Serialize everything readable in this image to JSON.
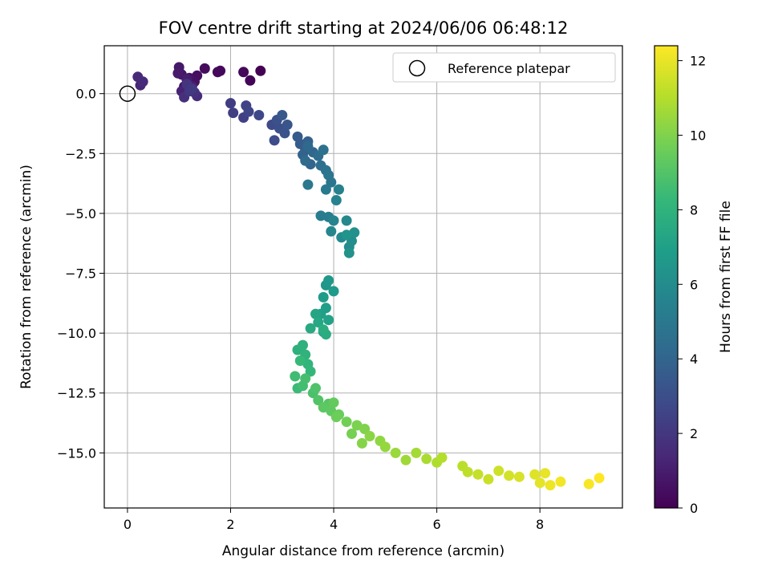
{
  "chart_data": {
    "type": "scatter",
    "title": "FOV centre drift starting at 2024/06/06 06:48:12",
    "xlabel": "Angular distance from reference (arcmin)",
    "ylabel": "Rotation from reference (arcmin)",
    "xlim": [
      -0.45,
      9.6
    ],
    "ylim": [
      -17.3,
      2.0
    ],
    "xticks": [
      "0",
      "2",
      "4",
      "6",
      "8"
    ],
    "xtick_values": [
      0,
      2,
      4,
      6,
      8
    ],
    "yticks": [
      "0.0",
      "−2.5",
      "−5.0",
      "−7.5",
      "−10.0",
      "−12.5",
      "−15.0"
    ],
    "ytick_values": [
      0,
      -2.5,
      -5,
      -7.5,
      -10,
      -12.5,
      -15
    ],
    "grid": true,
    "legend": {
      "placement": "top-right",
      "label": "Reference platepar"
    },
    "colorbar": {
      "label": "Hours from first FF file",
      "range": [
        0,
        12.4
      ],
      "ticks": [
        "0",
        "2",
        "4",
        "6",
        "8",
        "10",
        "12"
      ],
      "tick_values": [
        0,
        2,
        4,
        6,
        8,
        10,
        12
      ],
      "colormap": "viridis",
      "stops": [
        "#440154",
        "#482878",
        "#3e4989",
        "#31688e",
        "#26828e",
        "#1f9e89",
        "#35b779",
        "#6ece58",
        "#b5de2b",
        "#fde725"
      ]
    },
    "reference_point": {
      "x": 0,
      "y": 0
    },
    "series": [
      {
        "hours": [
          0.0,
          0.1,
          0.2,
          0.25,
          0.3,
          0.4,
          0.45,
          0.55,
          0.6,
          0.7,
          0.75,
          0.8,
          0.9,
          1.0,
          1.1,
          1.2,
          1.3,
          1.4,
          1.5,
          1.6,
          1.7,
          1.8,
          1.9,
          2.0,
          2.1,
          2.2,
          2.3,
          2.4,
          2.5,
          2.6,
          2.7,
          2.8,
          2.9,
          3.0,
          3.1,
          3.2,
          3.3,
          3.4,
          3.5,
          3.6,
          3.7,
          3.8,
          3.9,
          4.0,
          4.1,
          4.2,
          4.3,
          4.4,
          4.5,
          4.6,
          4.7,
          4.8,
          4.9,
          5.0,
          5.1,
          5.2,
          5.3,
          5.4,
          5.5,
          5.6,
          5.7,
          5.8,
          5.9,
          6.0,
          6.1,
          6.2,
          6.3,
          6.4,
          6.5,
          6.6,
          6.7,
          6.8,
          6.9,
          7.0,
          7.1,
          7.2,
          7.3,
          7.4,
          7.5,
          7.6,
          7.7,
          7.8,
          7.9,
          8.0,
          8.1,
          8.2,
          8.3,
          8.4,
          8.5,
          8.6,
          8.7,
          8.8,
          8.9,
          9.0,
          9.1,
          9.2,
          9.3,
          9.4,
          9.5,
          9.6,
          9.7,
          9.8,
          9.9,
          10.0,
          10.1,
          10.2,
          10.3,
          10.4,
          10.5,
          10.6,
          10.7,
          10.8,
          10.9,
          11.0,
          11.1,
          11.2,
          11.3,
          11.4,
          11.5,
          11.6,
          11.7,
          11.8,
          11.9,
          12.0,
          12.1,
          12.2,
          12.3,
          12.4
        ],
        "x": [
          2.58,
          2.38,
          2.25,
          1.8,
          1.75,
          1.5,
          1.35,
          1.3,
          1.2,
          1.1,
          1.05,
          1.0,
          0.98,
          1.15,
          1.25,
          1.05,
          0.25,
          0.2,
          0.3,
          1.35,
          1.1,
          1.3,
          1.15,
          1.2,
          1.25,
          2.0,
          2.05,
          2.25,
          2.3,
          2.35,
          2.55,
          2.8,
          2.85,
          2.95,
          2.9,
          3.05,
          3.1,
          3.0,
          3.3,
          3.35,
          3.45,
          3.5,
          3.4,
          3.55,
          3.6,
          3.5,
          3.45,
          3.7,
          3.75,
          3.8,
          3.85,
          3.9,
          3.95,
          3.5,
          3.85,
          3.75,
          3.9,
          4.1,
          4.05,
          4.0,
          3.95,
          4.25,
          4.15,
          4.3,
          4.35,
          4.4,
          4.3,
          4.25,
          3.85,
          3.9,
          4.0,
          3.8,
          3.85,
          3.75,
          3.9,
          3.8,
          3.65,
          3.7,
          3.55,
          3.85,
          3.8,
          3.3,
          3.4,
          3.45,
          3.5,
          3.55,
          3.35,
          3.3,
          3.25,
          3.4,
          3.45,
          3.6,
          3.65,
          3.7,
          3.9,
          3.8,
          3.95,
          4.0,
          4.1,
          4.05,
          4.25,
          4.35,
          4.45,
          4.6,
          4.55,
          4.7,
          4.9,
          5.0,
          5.2,
          5.4,
          5.6,
          5.8,
          6.0,
          6.1,
          6.5,
          6.6,
          6.8,
          7.0,
          7.2,
          7.4,
          7.6,
          7.9,
          8.0,
          8.1,
          8.2,
          8.4,
          8.95,
          9.15
        ],
        "y": [
          0.95,
          0.55,
          0.9,
          0.95,
          0.9,
          1.05,
          0.75,
          0.5,
          0.65,
          0.3,
          0.8,
          1.1,
          0.85,
          0.6,
          0.3,
          0.1,
          0.35,
          0.7,
          0.5,
          -0.1,
          -0.15,
          0.05,
          0.4,
          0.1,
          0.2,
          -0.4,
          -0.8,
          -1.0,
          -0.5,
          -0.75,
          -0.9,
          -1.3,
          -1.95,
          -1.45,
          -1.1,
          -1.65,
          -1.3,
          -0.9,
          -1.8,
          -2.1,
          -2.35,
          -2.0,
          -2.55,
          -2.95,
          -2.45,
          -2.2,
          -2.8,
          -2.6,
          -3.0,
          -2.35,
          -3.2,
          -3.4,
          -3.7,
          -3.8,
          -4.0,
          -5.1,
          -5.15,
          -4.0,
          -4.45,
          -5.3,
          -5.75,
          -5.3,
          -6.0,
          -6.4,
          -6.15,
          -5.8,
          -6.65,
          -5.9,
          -8.0,
          -7.8,
          -8.25,
          -8.5,
          -8.95,
          -9.2,
          -9.45,
          -9.95,
          -9.2,
          -9.55,
          -9.8,
          -10.05,
          -9.85,
          -10.7,
          -10.5,
          -10.9,
          -11.3,
          -11.6,
          -11.15,
          -12.3,
          -11.8,
          -12.2,
          -11.9,
          -12.5,
          -12.3,
          -12.8,
          -12.95,
          -13.1,
          -13.25,
          -12.9,
          -13.4,
          -13.5,
          -13.7,
          -14.2,
          -13.85,
          -14.0,
          -14.6,
          -14.3,
          -14.5,
          -14.75,
          -15.0,
          -15.3,
          -15.0,
          -15.25,
          -15.4,
          -15.2,
          -15.55,
          -15.8,
          -15.9,
          -16.1,
          -15.75,
          -15.95,
          -16.0,
          -15.9,
          -16.25,
          -15.85,
          -16.35,
          -16.2,
          -16.3,
          -16.05
        ]
      }
    ]
  }
}
